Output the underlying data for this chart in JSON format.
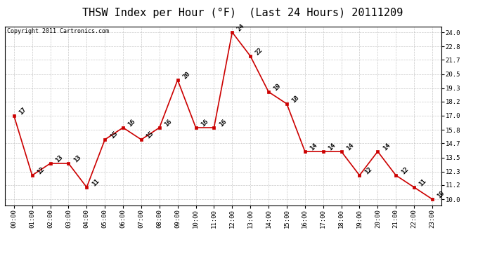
{
  "title": "THSW Index per Hour (°F)  (Last 24 Hours) 20111209",
  "copyright": "Copyright 2011 Cartronics.com",
  "hours": [
    "00:00",
    "01:00",
    "02:00",
    "03:00",
    "04:00",
    "05:00",
    "06:00",
    "07:00",
    "08:00",
    "09:00",
    "10:00",
    "11:00",
    "12:00",
    "13:00",
    "14:00",
    "15:00",
    "16:00",
    "17:00",
    "18:00",
    "19:00",
    "20:00",
    "21:00",
    "22:00",
    "23:00"
  ],
  "values": [
    17,
    12,
    13,
    13,
    11,
    15,
    16,
    15,
    16,
    20,
    16,
    16,
    24,
    22,
    19,
    18,
    14,
    14,
    14,
    12,
    14,
    12,
    11,
    10
  ],
  "ylim": [
    9.5,
    24.5
  ],
  "yticks": [
    10.0,
    11.2,
    12.3,
    13.5,
    14.7,
    15.8,
    17.0,
    18.2,
    19.3,
    20.5,
    21.7,
    22.8,
    24.0
  ],
  "line_color": "#cc0000",
  "marker_color": "#cc0000",
  "bg_color": "#ffffff",
  "plot_bg_color": "#ffffff",
  "grid_color": "#bbbbbb",
  "title_fontsize": 11,
  "label_fontsize": 6.5,
  "annotation_fontsize": 6.5,
  "copyright_fontsize": 6
}
